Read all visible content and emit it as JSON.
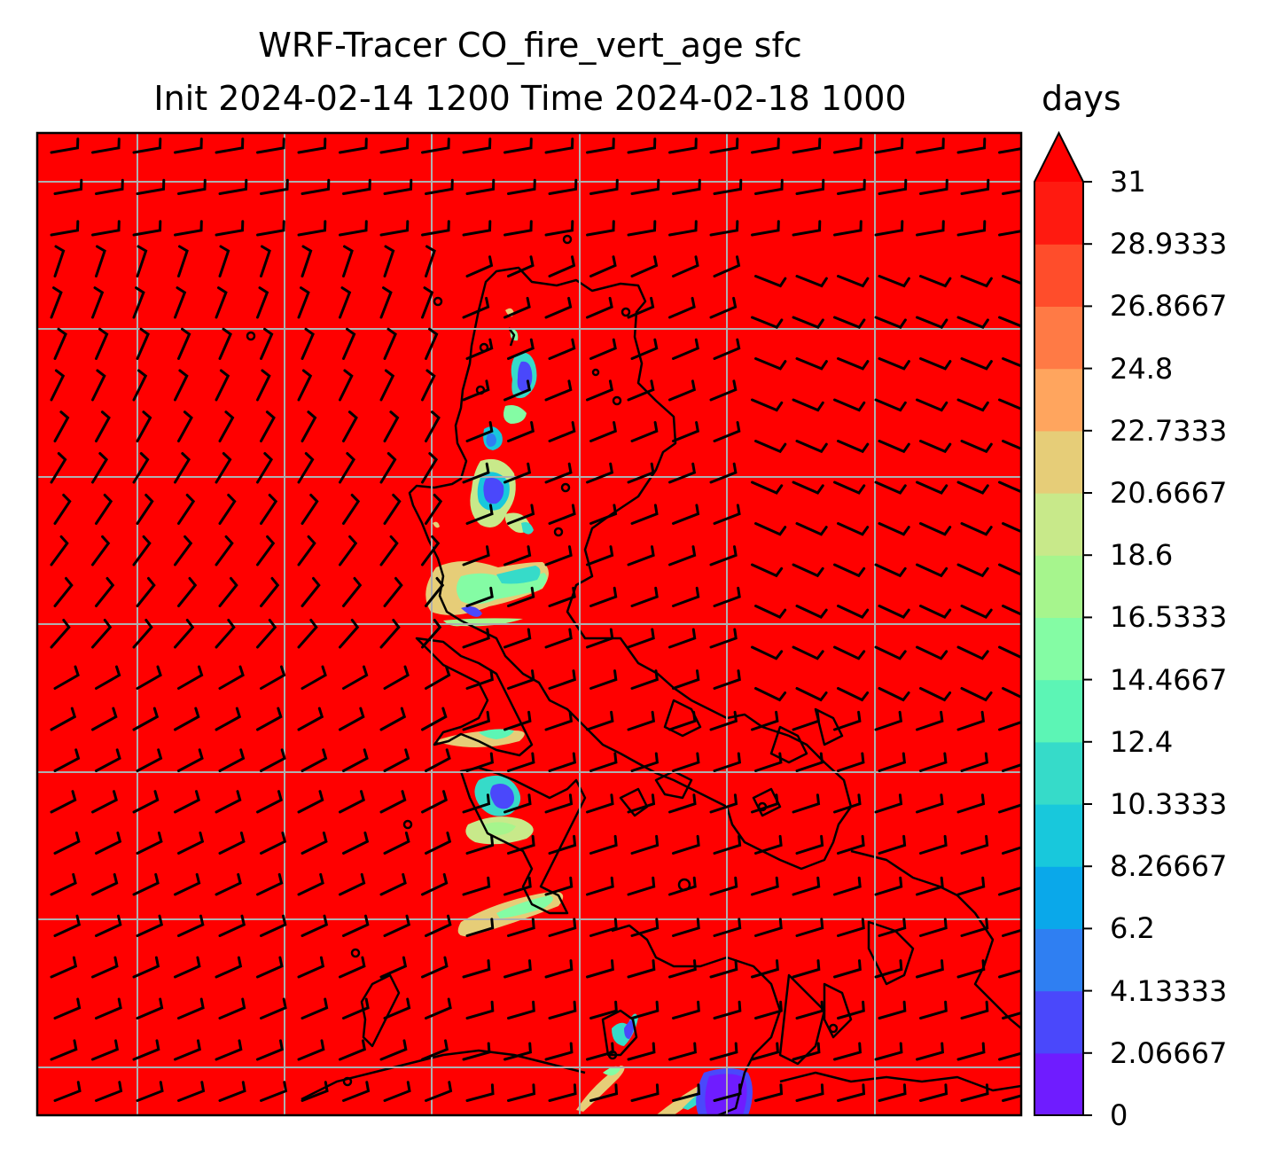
{
  "title": {
    "line1": "WRF-Tracer CO_fire_vert_age sfc",
    "line2": "Init 2024-02-14 1200 Time 2024-02-18 1000",
    "unit": "days"
  },
  "colorbar": {
    "min": 0,
    "max": 31,
    "extend": "max",
    "tick_labels": [
      "0",
      "2.06667",
      "4.13333",
      "6.2",
      "8.26667",
      "10.3333",
      "12.4",
      "14.4667",
      "16.5333",
      "18.6",
      "20.6667",
      "22.7333",
      "24.8",
      "26.8667",
      "28.9333",
      "31"
    ],
    "colors": [
      "#6f1cff",
      "#4a48fb",
      "#2f7ff2",
      "#0aa8ea",
      "#18c8dc",
      "#36dbc9",
      "#5cf5b5",
      "#84fca4",
      "#a6f58d",
      "#c8e98a",
      "#e6cd78",
      "#ffa55e",
      "#ff7a45",
      "#ff4d2b",
      "#ff1a10"
    ],
    "over_color": "#ff0000"
  },
  "map": {
    "background_color": "#ff0000",
    "gridlines": true,
    "coastline_color": "#000000",
    "wind_barbs": true
  }
}
